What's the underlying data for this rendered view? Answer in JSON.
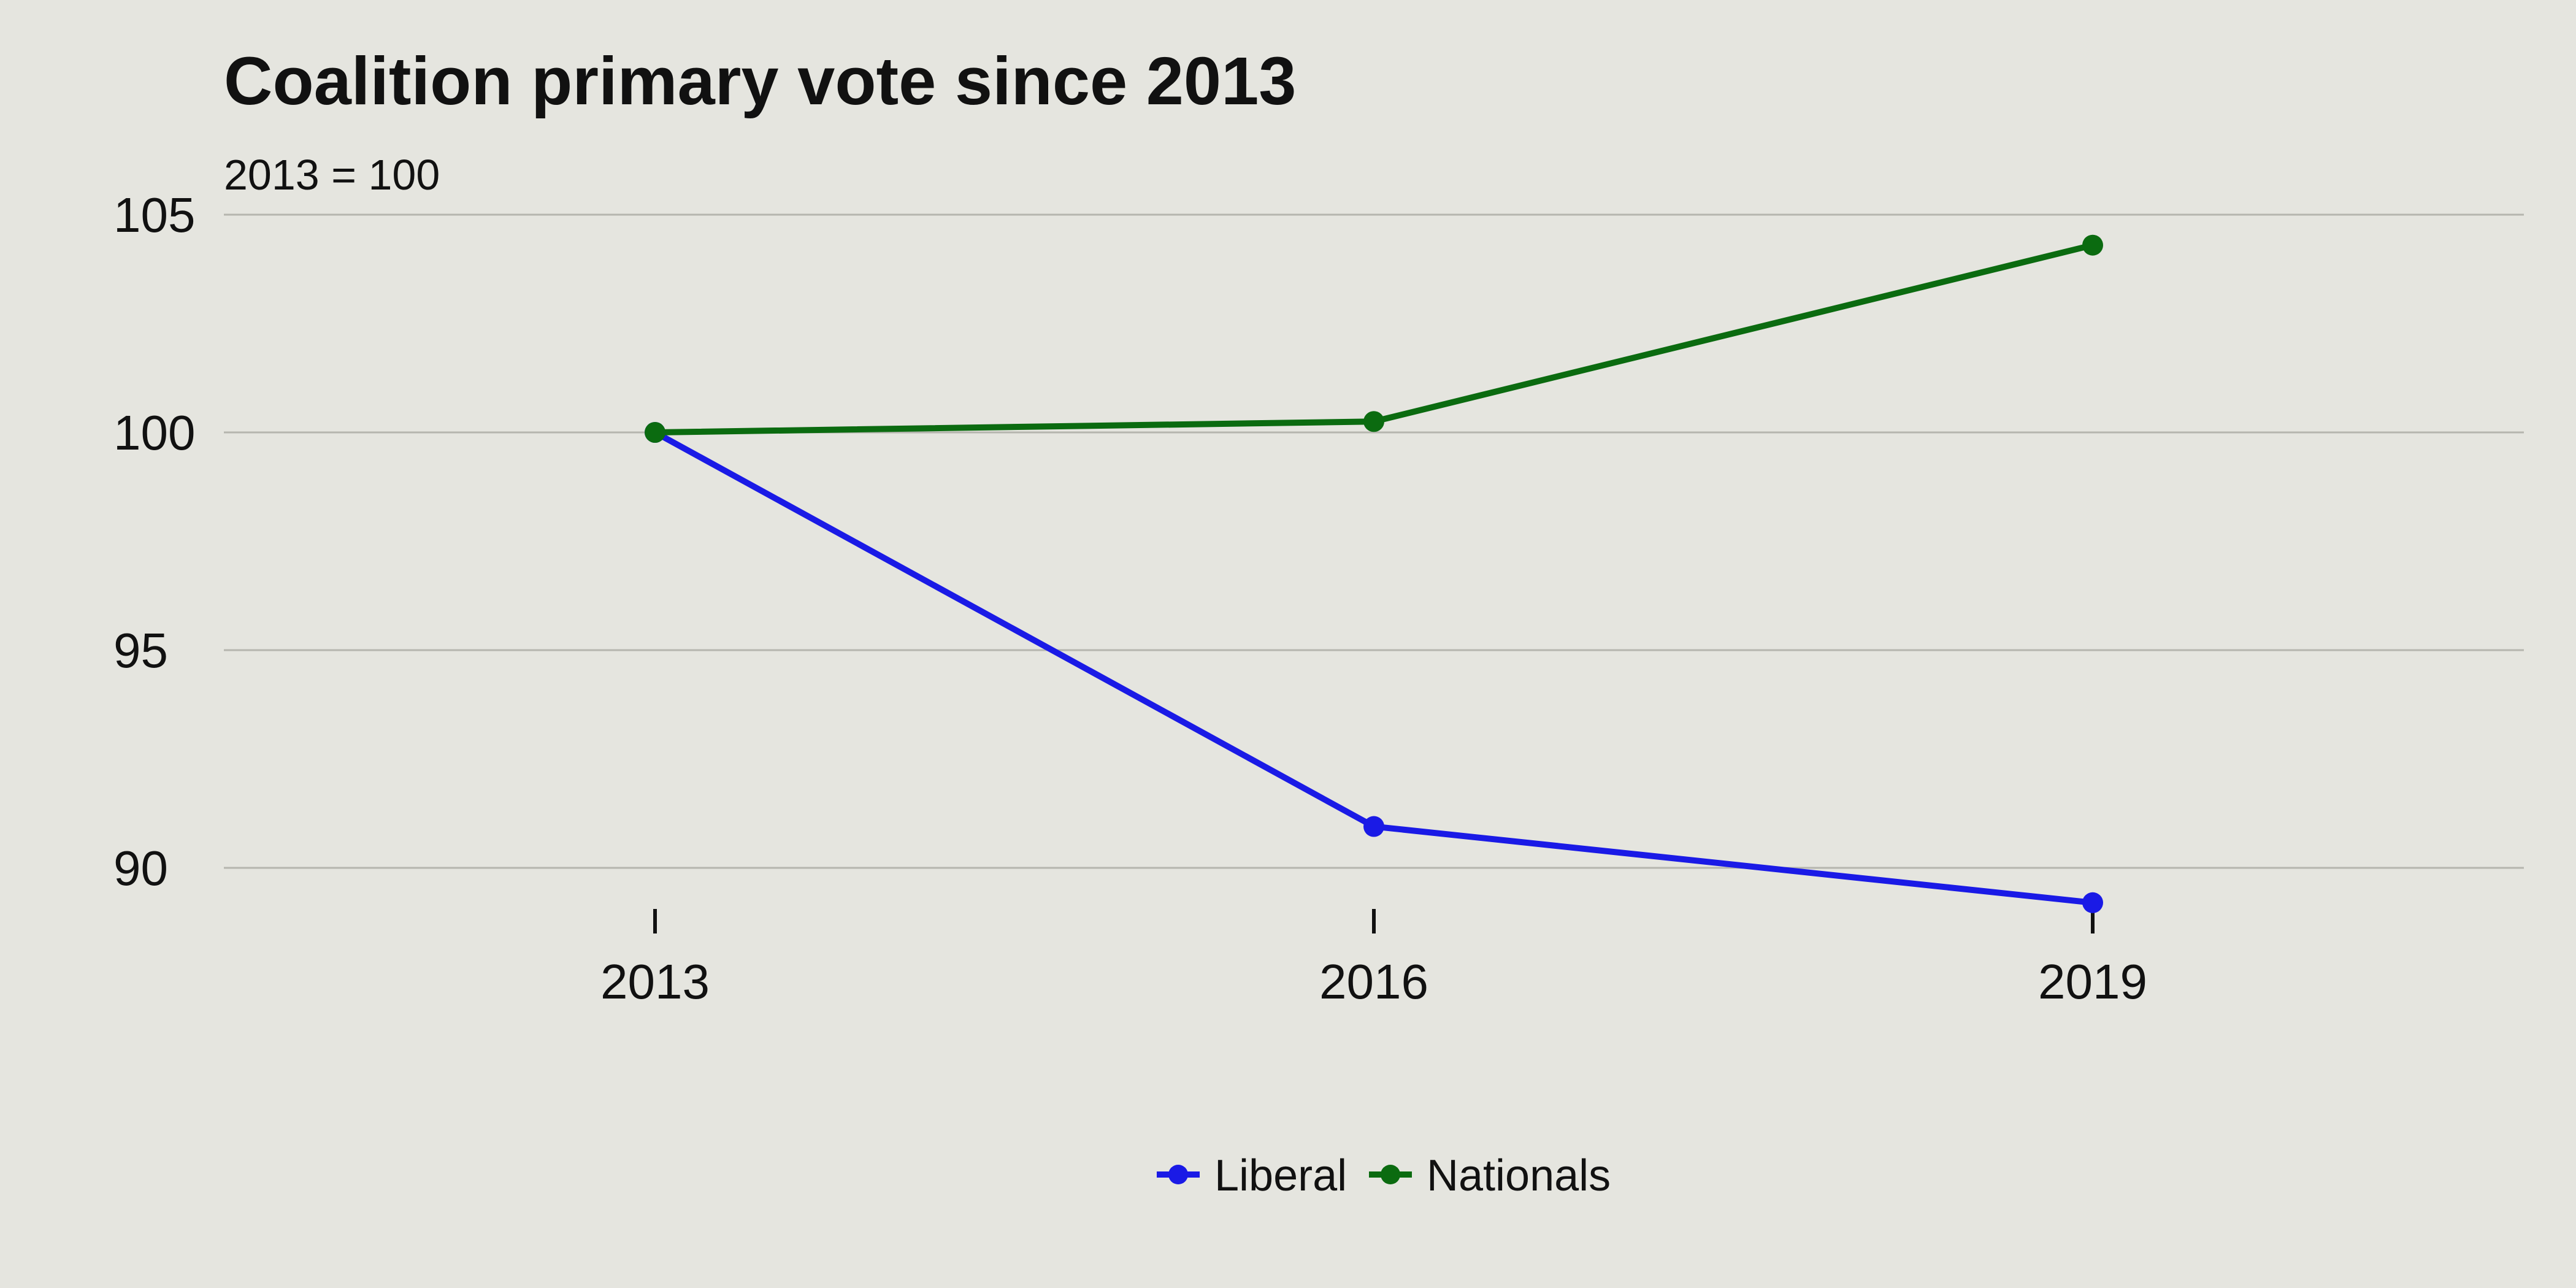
{
  "chart_data": {
    "type": "line",
    "title": "Coalition primary vote since 2013",
    "subtitle": "2013 = 100",
    "xlabel": "",
    "ylabel": "",
    "categories": [
      "2013",
      "2016",
      "2019"
    ],
    "series": [
      {
        "name": "Liberal",
        "color": "#1a1ae6",
        "values": [
          100,
          90.95,
          89.2
        ]
      },
      {
        "name": "Nationals",
        "color": "#0b6b10",
        "values": [
          100,
          100.25,
          104.3
        ]
      }
    ],
    "ylim": [
      89,
      105.5
    ],
    "yticks": [
      90,
      95,
      100,
      105
    ],
    "grid": true,
    "legend": "bottom-center"
  }
}
